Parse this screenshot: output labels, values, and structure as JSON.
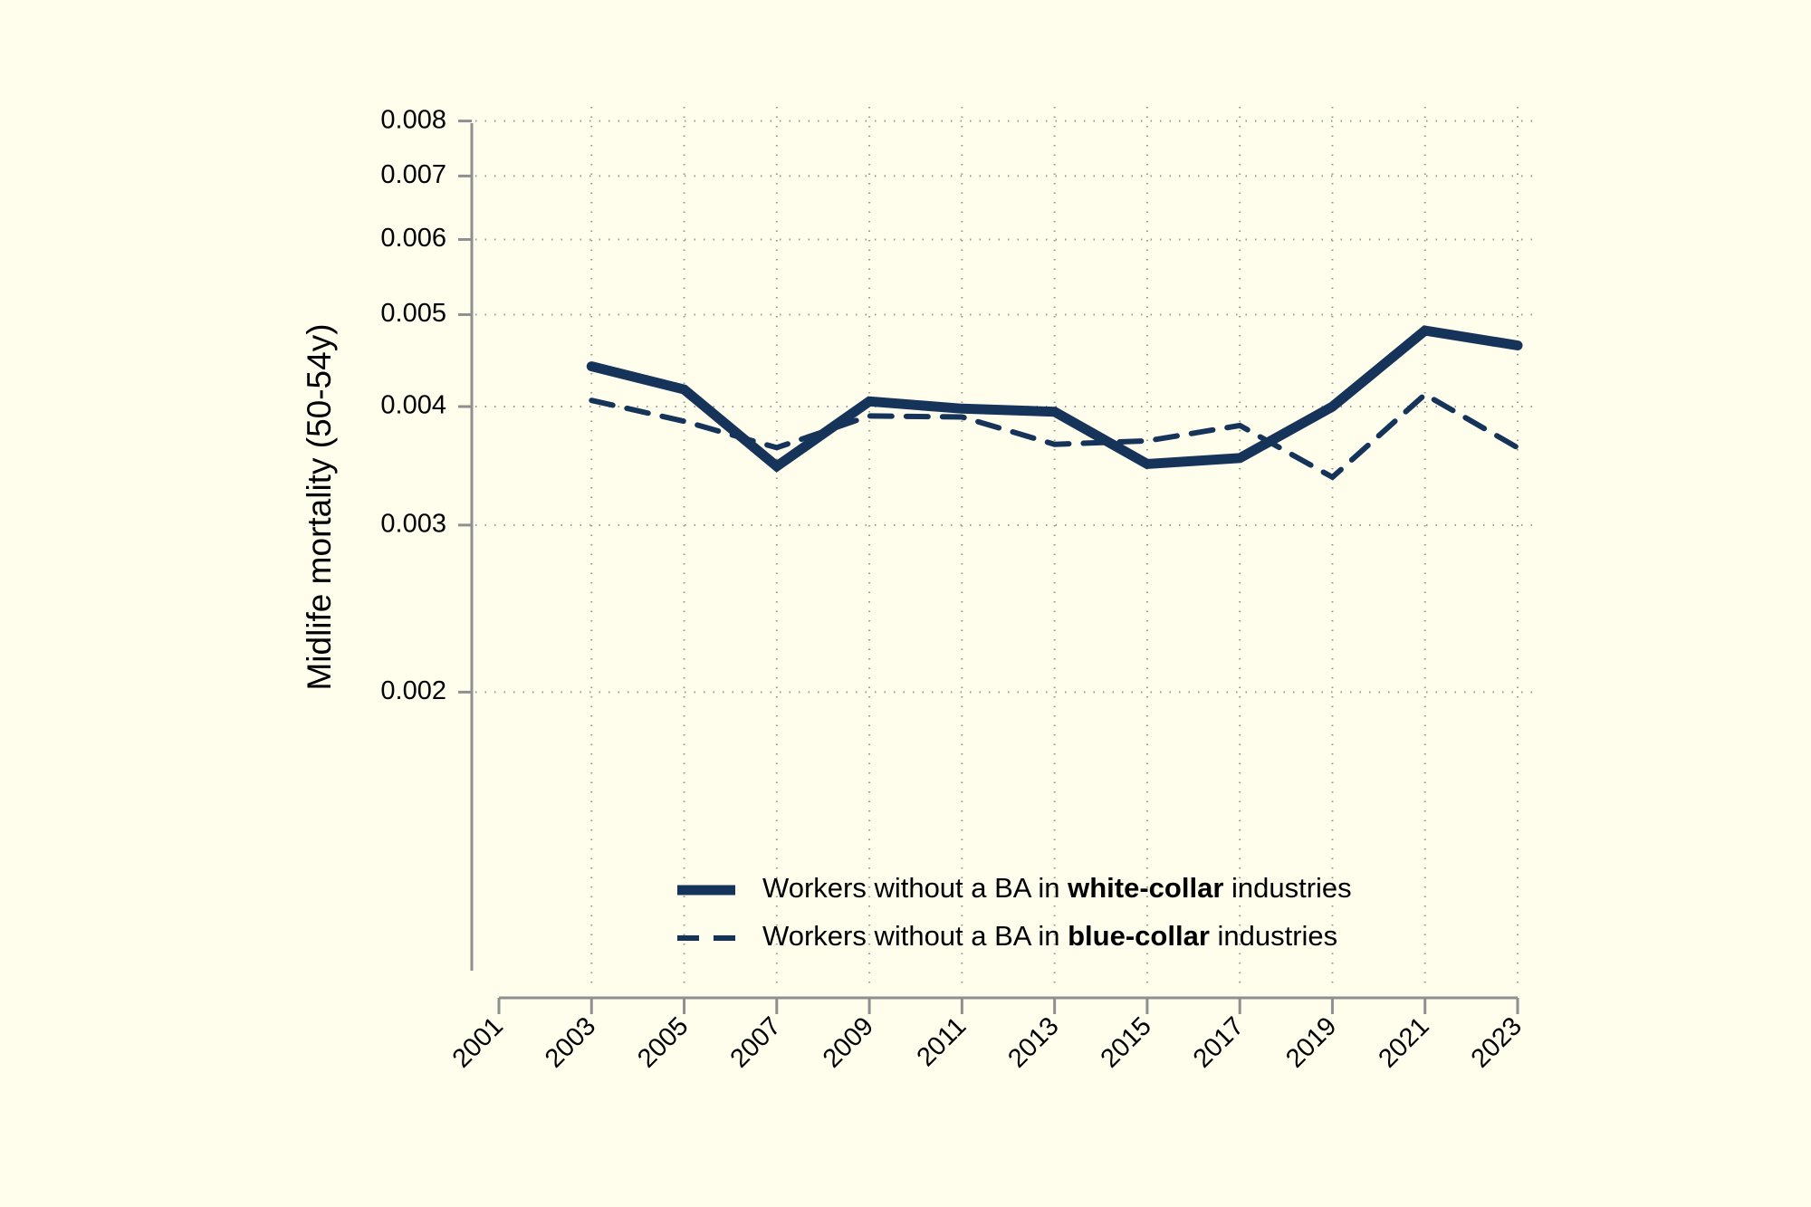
{
  "chart_data": {
    "type": "line",
    "title": "",
    "xlabel": "",
    "ylabel": "Midlife mortality (50-54y)",
    "y_scale": "log",
    "ylim": [
      0.001,
      0.008
    ],
    "xlim": [
      2001,
      2023
    ],
    "grid": true,
    "x_ticks": [
      "2001",
      "2003",
      "2005",
      "2007",
      "2009",
      "2011",
      "2013",
      "2015",
      "2017",
      "2019",
      "2021",
      "2023"
    ],
    "y_ticks": [
      {
        "value": 0.008,
        "label": "0.008"
      },
      {
        "value": 0.007,
        "label": "0.007"
      },
      {
        "value": 0.006,
        "label": "0.006"
      },
      {
        "value": 0.005,
        "label": "0.005"
      },
      {
        "value": 0.004,
        "label": "0.004"
      },
      {
        "value": 0.003,
        "label": "0.003"
      },
      {
        "value": 0.002,
        "label": "0.002"
      }
    ],
    "x": [
      2003,
      2005,
      2007,
      2009,
      2011,
      2013,
      2015,
      2017,
      2019,
      2021,
      2023
    ],
    "series": [
      {
        "name": "Workers without a BA in white-collar industries",
        "style": "solid",
        "color": "#16345a",
        "values": [
          0.00441,
          0.00417,
          0.00346,
          0.00405,
          0.00398,
          0.00395,
          0.00348,
          0.00353,
          0.004,
          0.00481,
          0.00464
        ]
      },
      {
        "name": "Workers without a BA in blue-collar industries",
        "style": "dashed",
        "color": "#16345a",
        "values": [
          0.00406,
          0.00386,
          0.00362,
          0.00391,
          0.0039,
          0.00365,
          0.00368,
          0.00382,
          0.00337,
          0.00412,
          0.00362
        ]
      }
    ],
    "legend": {
      "placement": "bottom-right-inside",
      "items": [
        {
          "prefix": "Workers without a BA in ",
          "bold": "white-collar",
          "suffix": " industries",
          "style": "solid"
        },
        {
          "prefix": "Workers without a BA in ",
          "bold": "blue-collar",
          "suffix": " industries",
          "style": "dashed"
        }
      ]
    }
  },
  "colors": {
    "background": "#fffeec",
    "line": "#16345a",
    "axis": "#8f8f8f"
  }
}
